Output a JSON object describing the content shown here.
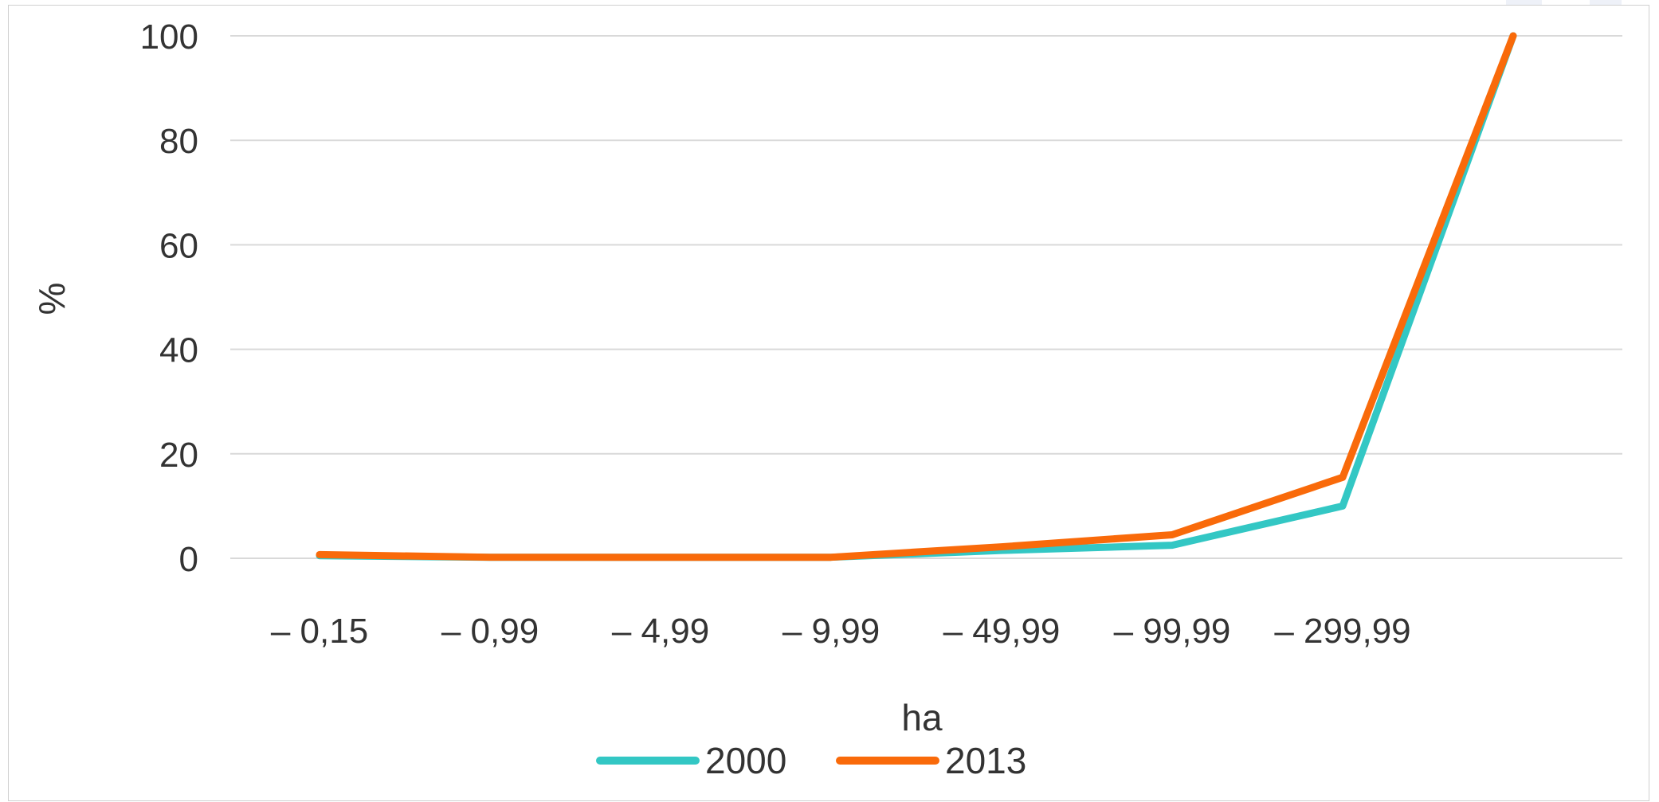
{
  "chart_data": {
    "type": "line",
    "title": "",
    "xlabel": "ha",
    "ylabel": "%",
    "ylim": [
      0,
      100
    ],
    "yticks": [
      0,
      20,
      40,
      60,
      80,
      100
    ],
    "grid": true,
    "legend_placement": "bottom",
    "categories": [
      "– 0,15",
      "– 0,99",
      "– 4,99",
      "– 9,99",
      "– 49,99",
      "– 99,99",
      "– 299,99",
      ""
    ],
    "series": [
      {
        "name": "2000",
        "color": "#33c7c4",
        "values": [
          0.5,
          0.2,
          0.2,
          0.2,
          1.5,
          2.5,
          10,
          100
        ]
      },
      {
        "name": "2013",
        "color": "#f96a0a",
        "values": [
          0.7,
          0.2,
          0.2,
          0.2,
          2.2,
          4.5,
          15.5,
          100
        ]
      }
    ]
  }
}
